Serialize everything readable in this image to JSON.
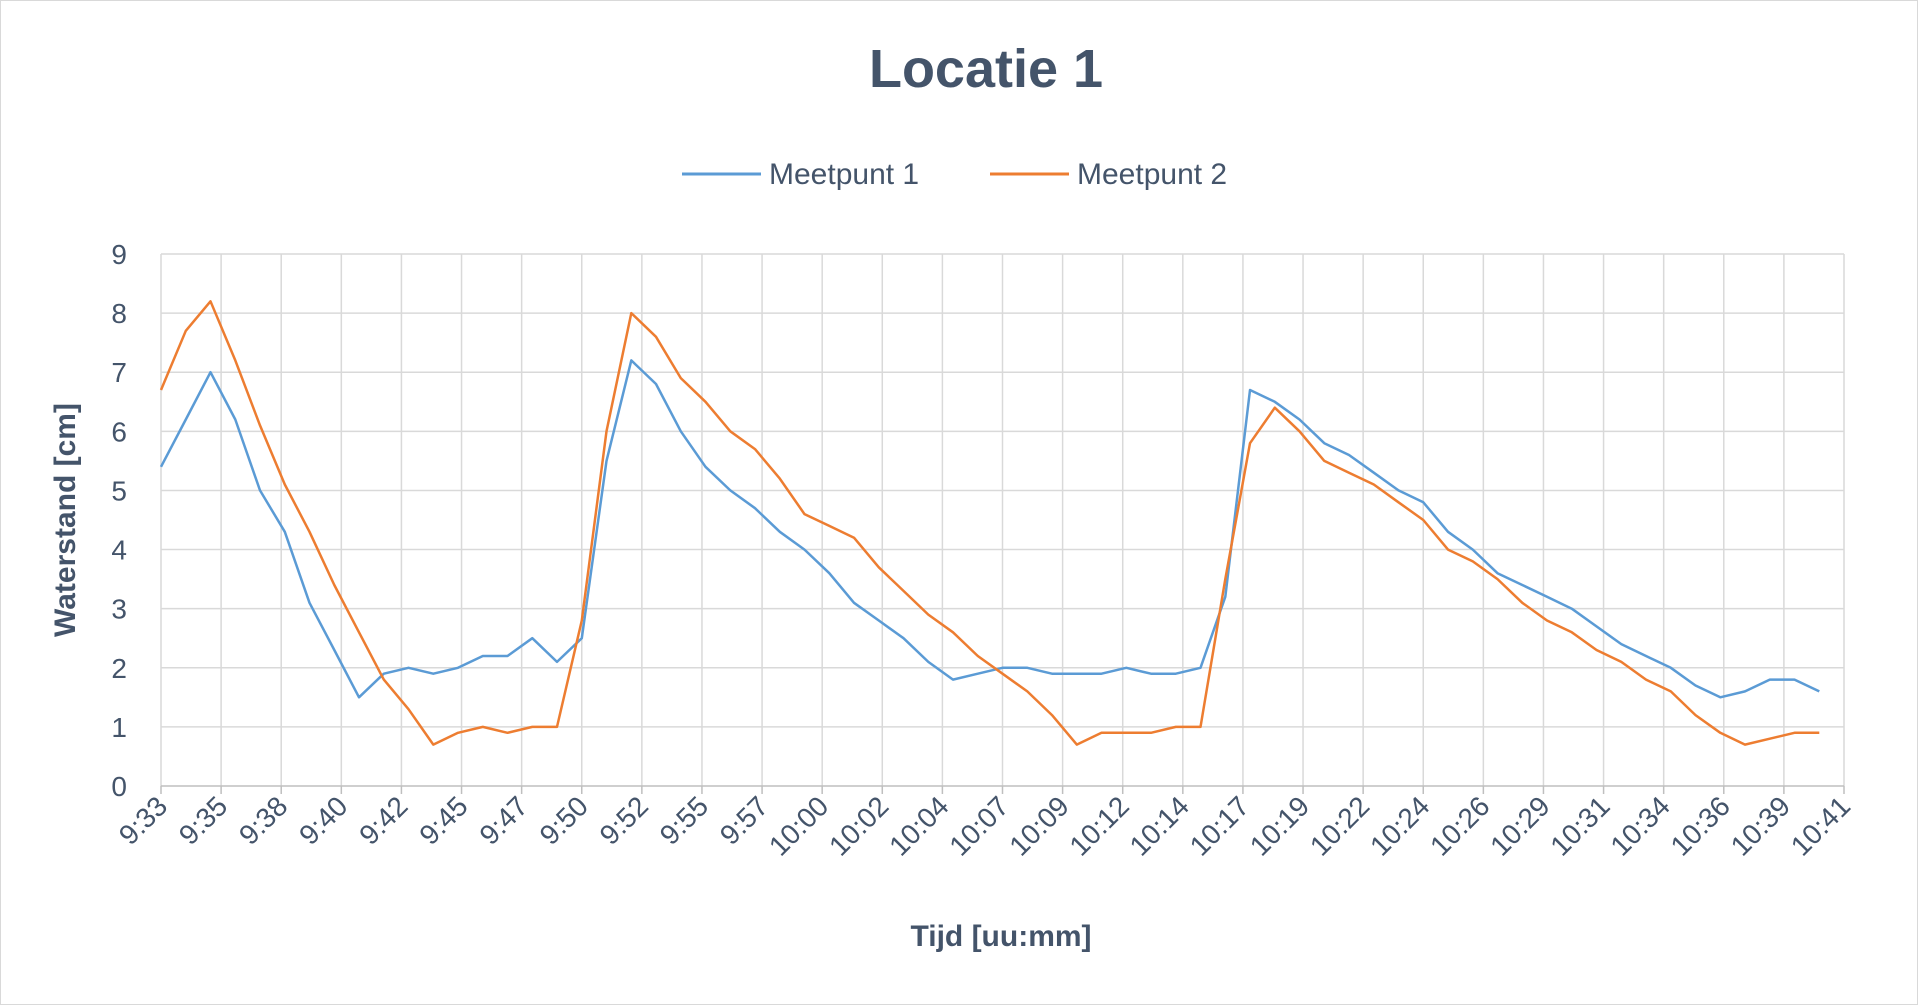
{
  "chart_data": {
    "type": "line",
    "title": "Locatie 1",
    "xlabel": "Tijd [uu:mm]",
    "ylabel": "Waterstand [cm]",
    "ylim": [
      0,
      9
    ],
    "y_ticks": [
      "0",
      "1",
      "2",
      "3",
      "4",
      "5",
      "6",
      "7",
      "8",
      "9"
    ],
    "x_ticks": [
      "9:33",
      "9:35",
      "9:38",
      "9:40",
      "9:42",
      "9:45",
      "9:47",
      "9:50",
      "9:52",
      "9:55",
      "9:57",
      "10:00",
      "10:02",
      "10:04",
      "10:07",
      "10:09",
      "10:12",
      "10:14",
      "10:17",
      "10:19",
      "10:22",
      "10:24",
      "10:26",
      "10:29",
      "10:31",
      "10:34",
      "10:36",
      "10:39",
      "10:41"
    ],
    "grid": true,
    "legend_position": "top",
    "colors": {
      "series1": "#5b9bd5",
      "series2": "#ed7d31"
    },
    "series": [
      {
        "name": "Meetpunt 1",
        "x": [
          "9:33",
          "9:34",
          "9:35",
          "9:36",
          "9:37",
          "9:38",
          "9:39",
          "9:40",
          "9:41",
          "9:42",
          "9:43",
          "9:44",
          "9:45",
          "9:46",
          "9:47",
          "9:48",
          "9:49",
          "9:50",
          "9:51",
          "9:52",
          "9:53",
          "9:54",
          "9:55",
          "9:56",
          "9:57",
          "9:58",
          "9:59",
          "10:00",
          "10:01",
          "10:02",
          "10:03",
          "10:04",
          "10:05",
          "10:06",
          "10:07",
          "10:08",
          "10:09",
          "10:10",
          "10:11",
          "10:12",
          "10:13",
          "10:14",
          "10:15",
          "10:16",
          "10:17",
          "10:18",
          "10:19",
          "10:20",
          "10:21",
          "10:22",
          "10:23",
          "10:24",
          "10:25",
          "10:26",
          "10:27",
          "10:28",
          "10:29",
          "10:30",
          "10:31",
          "10:32",
          "10:33",
          "10:34",
          "10:35",
          "10:36",
          "10:37",
          "10:38",
          "10:39",
          "10:40"
        ],
        "values": [
          5.4,
          6.2,
          7.0,
          6.2,
          5.0,
          4.3,
          3.1,
          2.3,
          1.5,
          1.9,
          2.0,
          1.9,
          2.0,
          2.2,
          2.2,
          2.5,
          2.1,
          2.5,
          5.5,
          7.2,
          6.8,
          6.0,
          5.4,
          5.0,
          4.7,
          4.3,
          4.0,
          3.6,
          3.1,
          2.8,
          2.5,
          2.1,
          1.8,
          1.9,
          2.0,
          2.0,
          1.9,
          1.9,
          1.9,
          2.0,
          1.9,
          1.9,
          2.0,
          3.2,
          6.7,
          6.5,
          6.2,
          5.8,
          5.6,
          5.3,
          5.0,
          4.8,
          4.3,
          4.0,
          3.6,
          3.4,
          3.2,
          3.0,
          2.7,
          2.4,
          2.2,
          2.0,
          1.7,
          1.5,
          1.6,
          1.8,
          1.8,
          1.6
        ]
      },
      {
        "name": "Meetpunt 2",
        "x": [
          "9:33",
          "9:34",
          "9:35",
          "9:36",
          "9:37",
          "9:38",
          "9:39",
          "9:40",
          "9:41",
          "9:42",
          "9:43",
          "9:44",
          "9:45",
          "9:46",
          "9:47",
          "9:48",
          "9:49",
          "9:50",
          "9:51",
          "9:52",
          "9:53",
          "9:54",
          "9:55",
          "9:56",
          "9:57",
          "9:58",
          "9:59",
          "10:00",
          "10:01",
          "10:02",
          "10:03",
          "10:04",
          "10:05",
          "10:06",
          "10:07",
          "10:08",
          "10:09",
          "10:10",
          "10:11",
          "10:12",
          "10:13",
          "10:14",
          "10:15",
          "10:16",
          "10:17",
          "10:18",
          "10:19",
          "10:20",
          "10:21",
          "10:22",
          "10:23",
          "10:24",
          "10:25",
          "10:26",
          "10:27",
          "10:28",
          "10:29",
          "10:30",
          "10:31",
          "10:32",
          "10:33",
          "10:34",
          "10:35",
          "10:36",
          "10:37",
          "10:38",
          "10:39",
          "10:40"
        ],
        "values": [
          6.7,
          7.7,
          8.2,
          7.2,
          6.1,
          5.1,
          4.3,
          3.4,
          2.6,
          1.8,
          1.3,
          0.7,
          0.9,
          1.0,
          0.9,
          1.0,
          1.0,
          2.8,
          6.0,
          8.0,
          7.6,
          6.9,
          6.5,
          6.0,
          5.7,
          5.2,
          4.6,
          4.4,
          4.2,
          3.7,
          3.3,
          2.9,
          2.6,
          2.2,
          1.9,
          1.6,
          1.2,
          0.7,
          0.9,
          0.9,
          0.9,
          1.0,
          1.0,
          3.5,
          5.8,
          6.4,
          6.0,
          5.5,
          5.3,
          5.1,
          4.8,
          4.5,
          4.0,
          3.8,
          3.5,
          3.1,
          2.8,
          2.6,
          2.3,
          2.1,
          1.8,
          1.6,
          1.2,
          0.9,
          0.7,
          0.8,
          0.9,
          0.9
        ]
      }
    ]
  }
}
